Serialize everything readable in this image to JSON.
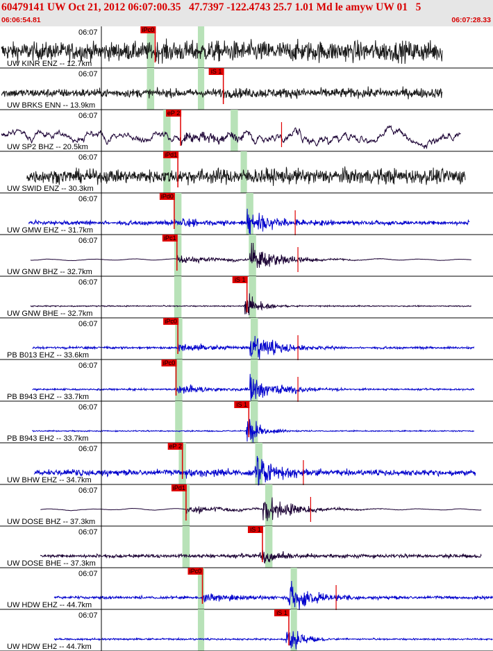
{
  "header": {
    "title": "60479141 UW Oct 21, 2012 06:07:00.35   47.7397 -122.4743 25.7 1.01 Md le amyw UW 01   5",
    "start_time": "06:06:54.81",
    "end_time": "06:07:28.33"
  },
  "colors": {
    "header_text": "#d80000",
    "pick": "#e00000",
    "window": "#b8e2b8",
    "gridline": "#000000"
  },
  "chart_data": {
    "type": "line",
    "description_note": "",
    "tick_label": "06:07",
    "traces": [
      {
        "label": "UW KINR ENZ -- 12.7km",
        "color": "#1a1a1a",
        "pick": "iPc0",
        "p_time": 16.9,
        "s_time": null,
        "start": 0,
        "end": 48.5,
        "amp": 0.75,
        "kind": "noise",
        "window": [
          16.0,
          16.8
        ],
        "window2": [
          21.6,
          22.3
        ]
      },
      {
        "label": "UW BRKS ENN -- 13.9km",
        "color": "#1a1a1a",
        "pick": "iS 1",
        "p_time": null,
        "s_time": 24.4,
        "start": 0,
        "end": 48.5,
        "amp": 0.35,
        "kind": "noise",
        "window": [
          16.0,
          16.8
        ],
        "window2": [
          21.6,
          22.3
        ]
      },
      {
        "label": "UW SP2 BHZ -- 20.5km",
        "color": "#1a0033",
        "pick": "eP 2",
        "p_time": 19.7,
        "s_time": 25.8,
        "start": 0,
        "end": 50.5,
        "amp": 0.55,
        "kind": "broadband",
        "window": [
          17.8,
          18.6
        ],
        "window2": [
          25.2,
          26.0
        ]
      },
      {
        "label": "UW SWID ENZ -- 30.3km",
        "color": "#1a1a1a",
        "pick": "iPd1",
        "p_time": 19.4,
        "s_time": null,
        "start": 2.8,
        "end": 51.0,
        "amp": 0.55,
        "kind": "noise",
        "window": [
          17.8,
          18.6
        ],
        "window2": [
          26.3,
          27.0
        ]
      },
      {
        "label": "UW GMW EHZ -- 31.7km",
        "color": "#0000cc",
        "pick": "iPd0",
        "p_time": 19.0,
        "s_time": 27.3,
        "start": 3.0,
        "end": 51.5,
        "amp": 0.15,
        "kind": "event",
        "window": [
          19.0,
          19.8
        ],
        "window2": [
          26.9,
          27.7
        ]
      },
      {
        "label": "UW GNW BHZ -- 32.7km",
        "color": "#1a0033",
        "pick": "iPc1",
        "p_time": 19.3,
        "s_time": 27.6,
        "start": 3.2,
        "end": 51.7,
        "amp": 0.12,
        "kind": "event_bb",
        "window": [
          19.0,
          19.8
        ],
        "window2": [
          27.2,
          28.0
        ]
      },
      {
        "label": "UW GNW BHE -- 32.7km",
        "color": "#1a0033",
        "pick": "iS 1",
        "p_time": null,
        "s_time": 27.0,
        "start": 3.2,
        "end": 51.7,
        "amp": 0.04,
        "kind": "event_s",
        "window": [
          19.0,
          19.8
        ],
        "window2": [
          27.2,
          28.0
        ]
      },
      {
        "label": "PB B013 EHZ -- 33.6km",
        "color": "#0000cc",
        "pick": "iPc0",
        "p_time": 19.4,
        "s_time": 27.6,
        "start": 3.4,
        "end": 52.0,
        "amp": 0.08,
        "kind": "event",
        "window": [
          19.1,
          19.9
        ],
        "window2": [
          27.4,
          28.2
        ]
      },
      {
        "label": "PB B943 EHZ -- 33.7km",
        "color": "#0000cc",
        "pick": "iPc0",
        "p_time": 19.2,
        "s_time": 27.6,
        "start": 3.4,
        "end": 52.0,
        "amp": 0.06,
        "kind": "event",
        "window": [
          19.1,
          19.9
        ],
        "window2": [
          27.4,
          28.2
        ]
      },
      {
        "label": "PB B943 EH2 -- 33.7km",
        "color": "#0000cc",
        "pick": "iS 1",
        "p_time": null,
        "s_time": 27.2,
        "start": 3.4,
        "end": 52.0,
        "amp": 0.04,
        "kind": "event_s",
        "window": [
          19.1,
          19.9
        ],
        "window2": [
          27.4,
          28.2
        ]
      },
      {
        "label": "UW BHW EHZ -- 34.7km",
        "color": "#0000cc",
        "pick": "eP 2",
        "p_time": 19.9,
        "s_time": 28.2,
        "start": 3.6,
        "end": 52.2,
        "amp": 0.2,
        "kind": "event",
        "window": [
          19.5,
          20.3
        ],
        "window2": [
          27.9,
          28.7
        ]
      },
      {
        "label": "UW DOSE BHZ -- 37.3km",
        "color": "#1a0033",
        "pick": "iPd1",
        "p_time": 20.3,
        "s_time": 29.0,
        "start": 4.3,
        "end": 52.8,
        "amp": 0.12,
        "kind": "event_bb",
        "window": [
          19.9,
          20.7
        ],
        "window2": [
          29.0,
          29.8
        ]
      },
      {
        "label": "UW DOSE BHE -- 37.3km",
        "color": "#1a0033",
        "pick": "iS 1",
        "p_time": null,
        "s_time": 28.7,
        "start": 4.3,
        "end": 52.8,
        "amp": 0.12,
        "kind": "event_s",
        "window": [
          19.9,
          20.7
        ],
        "window2": [
          29.0,
          29.8
        ]
      },
      {
        "label": "UW HDW EHZ -- 44.7km",
        "color": "#0000cc",
        "pick": "iPc0",
        "p_time": 22.1,
        "s_time": 31.8,
        "start": 5.8,
        "end": 54.0,
        "amp": 0.1,
        "kind": "event",
        "window": [
          21.6,
          22.3
        ],
        "window2": [
          31.8,
          32.5
        ]
      },
      {
        "label": "UW HDW EH2 -- 44.7km",
        "color": "#0000cc",
        "pick": "iS 1",
        "p_time": null,
        "s_time": 31.6,
        "start": 5.8,
        "end": 54.0,
        "amp": 0.06,
        "kind": "event_s",
        "window": [
          21.6,
          22.3
        ],
        "window2": [
          31.8,
          32.5
        ]
      }
    ]
  }
}
